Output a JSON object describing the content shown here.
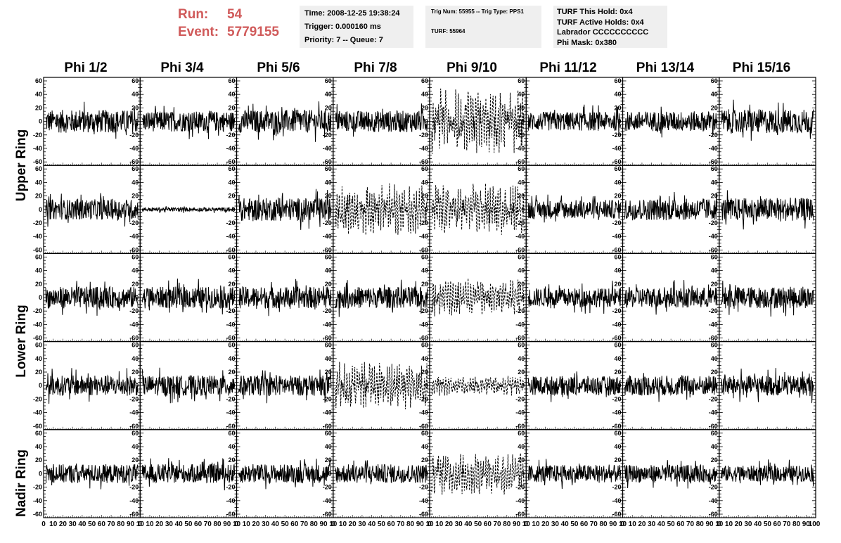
{
  "header": {
    "run_label": "Run:",
    "run_value": "54",
    "event_label": "Event:",
    "event_value": "5779155"
  },
  "info1": {
    "time": "Time: 2008-12-25 19:38:24",
    "trigger": "Trigger: 0.000160 ms",
    "priority": "Priority: 7 -- Queue: 7"
  },
  "info2": {
    "trig": "Trig Num: 55955 -- Trig Type: PPS1",
    "turf": "TURF: 55964"
  },
  "info3": {
    "hold": "TURF This Hold: 0x4",
    "active": "TURF Active Holds: 0x4",
    "labrador": "Labrador CCCCCCCCCC",
    "phimask": "Phi Mask: 0x380"
  },
  "columns": [
    "Phi 1/2",
    "Phi 3/4",
    "Phi 5/6",
    "Phi 7/8",
    "Phi 9/10",
    "Phi 11/12",
    "Phi 13/14",
    "Phi 15/16"
  ],
  "rows": [
    "Upper Ring",
    "Lower Ring",
    "Nadir Ring"
  ],
  "chart_data": {
    "type": "line",
    "description_rows": 5,
    "description_cols": 8,
    "ylim": [
      -60,
      60
    ],
    "xlim": [
      0,
      100
    ],
    "y_ticks": [
      -60,
      -40,
      -20,
      0,
      20,
      40,
      60
    ],
    "x_ticks": [
      0,
      10,
      20,
      30,
      40,
      50,
      60,
      70,
      80,
      90,
      100
    ],
    "x_tick_labels_strip": "0 10 20 30 40 50 60 70 80 90 10",
    "dashed_panels": [
      [
        0,
        4
      ],
      [
        1,
        3
      ],
      [
        1,
        4
      ],
      [
        2,
        4
      ],
      [
        3,
        3
      ],
      [
        3,
        4
      ],
      [
        4,
        4
      ]
    ],
    "amplitudes": [
      [
        17,
        15,
        17,
        16,
        38,
        14,
        15,
        18
      ],
      [
        15,
        3,
        17,
        30,
        30,
        14,
        16,
        17
      ],
      [
        16,
        16,
        16,
        16,
        22,
        14,
        15,
        16
      ],
      [
        15,
        15,
        15,
        28,
        12,
        14,
        15,
        15
      ],
      [
        14,
        14,
        14,
        14,
        25,
        13,
        13,
        12
      ]
    ]
  }
}
